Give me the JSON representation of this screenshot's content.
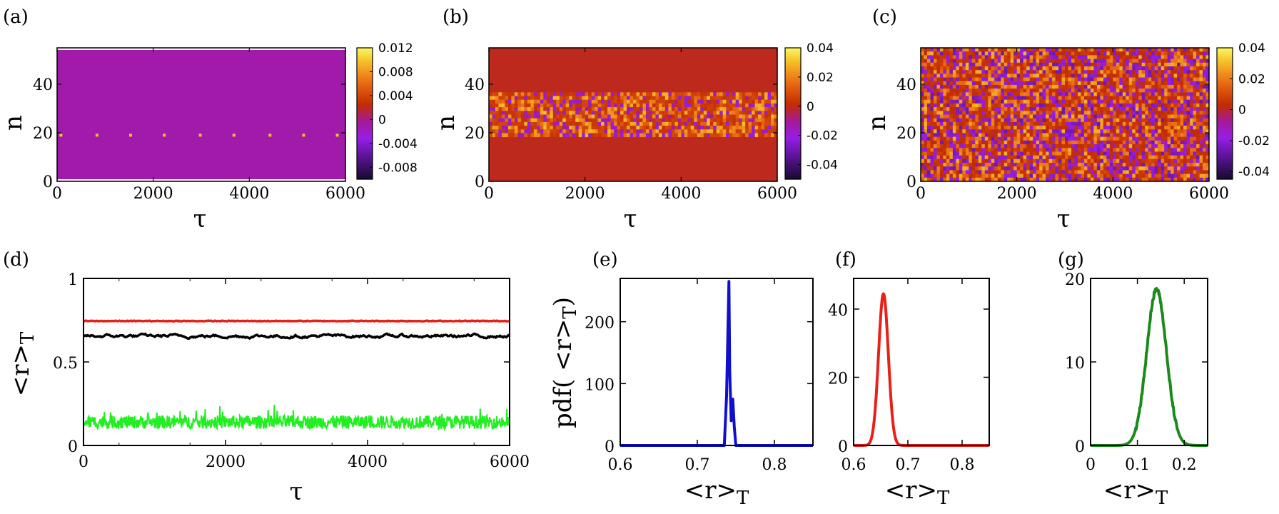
{
  "panels": {
    "heatmaps": [
      {
        "label": "(a)",
        "ylabel": "n",
        "xlabel": "τ",
        "xlim": [
          0,
          6000
        ],
        "ylim": [
          0,
          55
        ],
        "xticks": [
          0,
          2000,
          4000,
          6000
        ],
        "yticks": [
          0,
          20,
          40
        ],
        "colorbar_ticks": [
          "0.012",
          "0.008",
          "0.004",
          "0",
          "-0.004",
          "-0.008"
        ],
        "colorbar_range": [
          -0.01,
          0.012
        ],
        "pattern": "uniform"
      },
      {
        "label": "(b)",
        "ylabel": "n",
        "xlabel": "τ",
        "xlim": [
          0,
          6000
        ],
        "ylim": [
          0,
          55
        ],
        "xticks": [
          0,
          2000,
          4000,
          6000
        ],
        "yticks": [
          0,
          20,
          40
        ],
        "colorbar_ticks": [
          "0.04",
          "0.02",
          "0",
          "-0.02",
          "-0.04"
        ],
        "colorbar_range": [
          -0.05,
          0.04
        ],
        "pattern": "band",
        "band_n": [
          19,
          36
        ]
      },
      {
        "label": "(c)",
        "ylabel": "n",
        "xlabel": "τ",
        "xlim": [
          0,
          6000
        ],
        "ylim": [
          0,
          55
        ],
        "xticks": [
          0,
          2000,
          4000,
          6000
        ],
        "yticks": [
          0,
          20,
          40
        ],
        "colorbar_ticks": [
          "0.04",
          "0.02",
          "0",
          "-0.02",
          "-0.04"
        ],
        "colorbar_range": [
          -0.045,
          0.04
        ],
        "pattern": "full"
      }
    ],
    "timeseries": {
      "label": "(d)",
      "xlabel": "τ",
      "ylabel_main": "<r>",
      "ylabel_sub": "T",
      "xlim": [
        0,
        6000
      ],
      "ylim": [
        0,
        1
      ],
      "xticks": [
        0,
        2000,
        4000,
        6000
      ],
      "yticks": [
        0,
        0.5,
        1
      ],
      "ytick_labels": [
        "0",
        "0.5",
        "1"
      ]
    },
    "pdf_ylabel": "pdf( <r>",
    "pdf_ylabel_sub": "T",
    "pdf_ylabel_close": ")",
    "pdfs": [
      {
        "label": "(e)",
        "xlabel_main": "<r>",
        "xlabel_sub": "T",
        "xlim": [
          0.6,
          0.85
        ],
        "ylim": [
          0,
          270
        ],
        "xticks": [
          0.6,
          0.7,
          0.8
        ],
        "xtick_labels": [
          "0.6",
          "0.7",
          "0.8"
        ],
        "yticks": [
          0,
          100,
          200
        ],
        "ytick_labels": [
          "0",
          "100",
          "200"
        ],
        "color": "#1010cc"
      },
      {
        "label": "(f)",
        "xlabel_main": "<r>",
        "xlabel_sub": "T",
        "xlim": [
          0.6,
          0.85
        ],
        "ylim": [
          0,
          49
        ],
        "xticks": [
          0.6,
          0.7,
          0.8
        ],
        "xtick_labels": [
          "0.6",
          "0.7",
          "0.8"
        ],
        "yticks": [
          0,
          20,
          40
        ],
        "ytick_labels": [
          "0",
          "20",
          "40"
        ],
        "color": "#e8201a"
      },
      {
        "label": "(g)",
        "xlabel_main": "<r>",
        "xlabel_sub": "T",
        "xlim": [
          0,
          0.25
        ],
        "ylim": [
          0,
          20
        ],
        "xticks": [
          0,
          0.1,
          0.2
        ],
        "xtick_labels": [
          "0",
          "0.1",
          "0.2"
        ],
        "yticks": [
          0,
          10,
          20
        ],
        "ytick_labels": [
          "0",
          "10",
          "20"
        ],
        "color": "#1a8a1a"
      }
    ]
  },
  "chart_data": [
    {
      "type": "heatmap",
      "title": "(a)",
      "xlabel": "τ",
      "ylabel": "n",
      "x_range": [
        0,
        6000
      ],
      "y_range": [
        0,
        55
      ],
      "description_values": {
        "background": -0.0008,
        "spot_row_n": 19,
        "spot_tau": [
          50,
          800,
          1500,
          2200,
          2950,
          3650,
          4400,
          5100,
          5800
        ]
      }
    },
    {
      "type": "heatmap",
      "title": "(b)",
      "xlabel": "τ",
      "ylabel": "n",
      "x_range": [
        0,
        6000
      ],
      "y_range": [
        0,
        55
      ],
      "description_values": {
        "background": 0.0,
        "active_band_n": [
          19,
          36
        ]
      }
    },
    {
      "type": "heatmap",
      "title": "(c)",
      "xlabel": "τ",
      "ylabel": "n",
      "x_range": [
        0,
        6000
      ],
      "y_range": [
        0,
        55
      ],
      "description_values": {
        "background": 0.0,
        "active_band_n": [
          0,
          55
        ]
      }
    },
    {
      "type": "line",
      "title": "(d)",
      "xlabel": "τ",
      "ylabel": "<r>T",
      "xlim": [
        0,
        6000
      ],
      "ylim": [
        0,
        1
      ],
      "series": [
        {
          "name": "red",
          "color": "#e8201a",
          "mean": 0.745,
          "fluct": 0.004
        },
        {
          "name": "black",
          "color": "#000000",
          "mean": 0.655,
          "fluct": 0.015
        },
        {
          "name": "green",
          "color": "#22ee22",
          "mean": 0.14,
          "fluct": 0.04
        }
      ]
    },
    {
      "type": "line",
      "title": "(e)",
      "xlabel": "<r>T",
      "ylabel": "pdf( <r>T)",
      "xlim": [
        0.6,
        0.85
      ],
      "ylim": [
        0,
        270
      ],
      "x": [
        0.6,
        0.735,
        0.738,
        0.741,
        0.742,
        0.744,
        0.746,
        0.748,
        0.75,
        0.85
      ],
      "y": [
        0,
        0,
        80,
        265,
        120,
        40,
        75,
        30,
        0,
        0
      ]
    },
    {
      "type": "line",
      "title": "(f)",
      "xlabel": "<r>T",
      "ylabel": "",
      "xlim": [
        0.6,
        0.85
      ],
      "ylim": [
        0,
        49
      ],
      "gaussian": {
        "mean": 0.655,
        "sigma": 0.009,
        "peak": 44.5
      }
    },
    {
      "type": "line",
      "title": "(g)",
      "xlabel": "<r>T",
      "ylabel": "",
      "xlim": [
        0,
        0.25
      ],
      "ylim": [
        0,
        20
      ],
      "gaussian": {
        "mean": 0.141,
        "sigma": 0.021,
        "peak": 18.7
      }
    }
  ]
}
